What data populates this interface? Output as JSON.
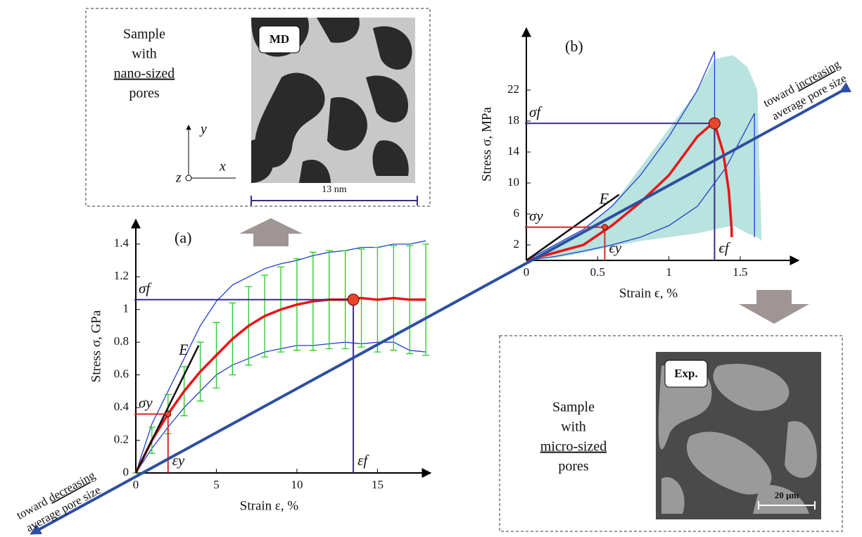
{
  "chart_data": [
    {
      "type": "line",
      "panel_label": "(a)",
      "x_label": "Strain ε, %",
      "y_label": "Stress σ, GPa",
      "xlim": [
        0,
        18.3
      ],
      "ylim": [
        0,
        1.55
      ],
      "xticks": [
        0,
        5,
        10,
        15
      ],
      "yticks": [
        0,
        0.2,
        0.4,
        0.6,
        0.8,
        1,
        1.2,
        1.4
      ],
      "x": [
        0,
        1,
        2,
        3,
        4,
        5,
        6,
        7,
        8,
        9,
        10,
        11,
        12,
        13,
        14,
        15,
        16,
        17,
        18
      ],
      "series": [
        {
          "color": "#1f3fd0",
          "values": [
            0,
            0.3,
            0.5,
            0.7,
            0.9,
            1.05,
            1.15,
            1.2,
            1.25,
            1.28,
            1.3,
            1.33,
            1.35,
            1.36,
            1.38,
            1.38,
            1.4,
            1.4,
            1.42
          ]
        },
        {
          "color": "#1f3fd0",
          "values": [
            0,
            0.15,
            0.28,
            0.4,
            0.5,
            0.6,
            0.66,
            0.7,
            0.74,
            0.76,
            0.78,
            0.78,
            0.79,
            0.8,
            0.79,
            0.8,
            0.8,
            0.75,
            0.74
          ]
        },
        {
          "color": "#e8141a",
          "values": [
            0,
            0.2,
            0.36,
            0.5,
            0.62,
            0.72,
            0.82,
            0.9,
            0.96,
            1.0,
            1.03,
            1.05,
            1.06,
            1.06,
            1.07,
            1.06,
            1.07,
            1.06,
            1.06
          ],
          "errors": [
            0,
            0.08,
            0.12,
            0.15,
            0.18,
            0.2,
            0.22,
            0.24,
            0.25,
            0.26,
            0.28,
            0.3,
            0.3,
            0.3,
            0.3,
            0.32,
            0.32,
            0.33,
            0.34
          ],
          "error_color": "#22cc22"
        }
      ],
      "modulus_line": {
        "label": "E",
        "x": [
          0,
          3.9
        ],
        "values": [
          0,
          0.78
        ]
      },
      "points": [
        {
          "x": 2,
          "y": 0.36,
          "x_label": "εy",
          "y_label": "σy",
          "color": "#d62728"
        },
        {
          "x": 13.5,
          "y": 1.06,
          "x_label": "εf",
          "y_label": "σf",
          "color": "#3b2a8a"
        }
      ]
    },
    {
      "type": "line",
      "panel_label": "(b)",
      "x_label": "Strain ϵ, %",
      "y_label": "Stress σ, MPa",
      "xlim": [
        0,
        1.91
      ],
      "ylim": [
        0,
        30
      ],
      "xticks": [
        0,
        0.5,
        1,
        1.5
      ],
      "yticks": [
        2,
        6,
        10,
        14,
        18,
        22
      ],
      "band": {
        "color": "#b8e3de",
        "x": [
          0,
          0.2,
          0.4,
          0.6,
          0.8,
          1.0,
          1.2,
          1.32,
          1.45,
          1.55,
          1.62,
          1.65
        ],
        "upper": [
          0,
          2,
          4,
          7,
          12,
          17,
          22,
          26,
          26.5,
          25,
          22,
          3
        ],
        "lower": [
          0,
          0.3,
          1,
          1.8,
          2.5,
          3,
          3.5,
          4,
          4.5,
          3.5,
          3,
          2.5
        ]
      },
      "series": [
        {
          "color": "#1f3fd0",
          "x": [
            0,
            0.2,
            0.4,
            0.6,
            0.8,
            1.0,
            1.2,
            1.32,
            1.32
          ],
          "values": [
            0,
            2,
            4,
            7,
            11,
            16,
            22,
            27,
            8
          ]
        },
        {
          "color": "#1f3fd0",
          "x": [
            0,
            0.2,
            0.4,
            0.6,
            0.8,
            1.0,
            1.2,
            1.4,
            1.6,
            1.6
          ],
          "values": [
            0,
            0.5,
            1.2,
            2,
            3,
            4.5,
            7,
            12,
            19,
            3
          ]
        },
        {
          "color": "#e8141a",
          "x": [
            0,
            0.2,
            0.4,
            0.6,
            0.8,
            1.0,
            1.1,
            1.2,
            1.3,
            1.32,
            1.38,
            1.42,
            1.44,
            1.44
          ],
          "values": [
            0,
            1,
            2,
            4.5,
            7.5,
            11,
            13.5,
            16,
            17.6,
            17.7,
            14,
            9,
            4,
            3
          ]
        }
      ],
      "modulus_line": {
        "label": "E",
        "x": [
          0,
          0.65
        ],
        "values": [
          0,
          8.5
        ]
      },
      "points": [
        {
          "x": 0.55,
          "y": 4.3,
          "x_label": "ϵy",
          "y_label": "σy",
          "color": "#d62728"
        },
        {
          "x": 1.32,
          "y": 17.7,
          "x_label": "ϵf",
          "y_label": "σf",
          "color": "#3b2a8a"
        }
      ]
    }
  ],
  "md_panel": {
    "caption": [
      "Sample",
      "with",
      "nano-sized",
      "pores"
    ],
    "tag": "MD",
    "scale_bar": "13 nm",
    "axes": [
      "y",
      "x",
      "z"
    ]
  },
  "exp_panel": {
    "caption": [
      "Sample",
      "with",
      "micro-sized",
      "pores"
    ],
    "tag": "Exp.",
    "scale_bar": "20 µm"
  },
  "trend_arrow": {
    "decreasing": [
      "toward",
      "decreasing",
      "average pore size"
    ],
    "increasing": [
      "toward",
      "increasing",
      "average pore size"
    ]
  }
}
